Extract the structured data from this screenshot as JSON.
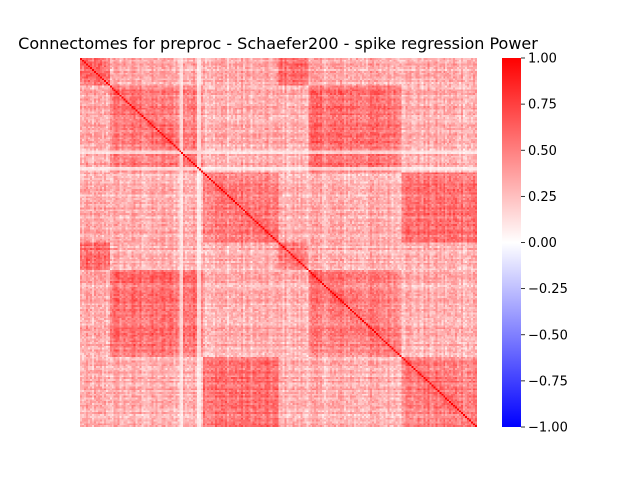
{
  "chart_data": {
    "type": "heatmap",
    "title": "Connectomes for preproc - Schaefer200 - spike regression Power",
    "xlabel": "",
    "ylabel": "",
    "matrix_size": 200,
    "diagonal_value": 1.0,
    "value_range": [
      -1.0,
      1.0
    ],
    "background_correlation": 0.3,
    "block_boundaries": [
      0,
      15,
      62,
      100,
      115,
      162,
      200
    ],
    "network_pairs": [
      [
        0,
        3
      ],
      [
        1,
        4
      ],
      [
        2,
        5
      ]
    ],
    "within_block_correlation": 0.48,
    "paired_block_correlation": 0.55,
    "low_connectivity_rows": [
      50,
      51,
      59,
      60
    ],
    "colormap": {
      "name": "bwr",
      "min_color": "#0000ff",
      "mid_color": "#ffffff",
      "max_color": "#ff0000"
    },
    "colorbar": {
      "ticks": [
        "1.00",
        "0.75",
        "0.50",
        "0.25",
        "0.00",
        "−0.25",
        "−0.50",
        "−0.75",
        "−1.00"
      ],
      "tick_values": [
        1.0,
        0.75,
        0.5,
        0.25,
        0.0,
        -0.25,
        -0.5,
        -0.75,
        -1.0
      ]
    },
    "grid": false,
    "axis_ticks_shown": false
  }
}
